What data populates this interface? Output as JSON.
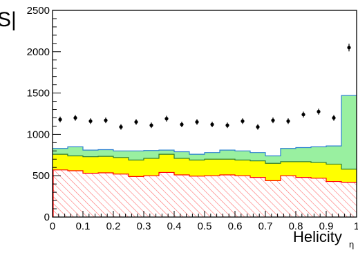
{
  "chart_data": {
    "type": "area",
    "xlabel": "Helicity",
    "xlabel_sub": "η",
    "corner_text": "S|",
    "xlim": [
      0,
      1
    ],
    "ylim": [
      0,
      2500
    ],
    "x_ticks": [
      0,
      0.1,
      0.2,
      0.3,
      0.4,
      0.5,
      0.6,
      0.7,
      0.8,
      0.9,
      1
    ],
    "x_tick_labels": [
      "0",
      "0.1",
      "0.2",
      "0.3",
      "0.4",
      "0.5",
      "0.6",
      "0.7",
      "0.8",
      "0.9",
      "1"
    ],
    "y_ticks": [
      0,
      500,
      1000,
      1500,
      2000,
      2500
    ],
    "y_tick_labels": [
      "0",
      "500",
      "1000",
      "1500",
      "2000",
      "2500"
    ],
    "bin_edges": [
      0,
      0.05,
      0.1,
      0.15,
      0.2,
      0.25,
      0.3,
      0.35,
      0.4,
      0.45,
      0.5,
      0.55,
      0.6,
      0.65,
      0.7,
      0.75,
      0.8,
      0.85,
      0.9,
      0.95,
      1.0
    ],
    "series": [
      {
        "color": "#99f0a0",
        "line_color": "#2a7fd0",
        "values": [
          830,
          850,
          810,
          815,
          800,
          800,
          805,
          810,
          790,
          760,
          780,
          810,
          800,
          780,
          740,
          830,
          840,
          850,
          860,
          1470
        ]
      },
      {
        "color": "#ffff00",
        "line_color": "#2e7d32",
        "values": [
          760,
          740,
          730,
          735,
          720,
          690,
          710,
          760,
          710,
          690,
          700,
          700,
          690,
          680,
          650,
          670,
          670,
          660,
          640,
          580
        ]
      },
      {
        "color": "#e8e8e8",
        "hatch_color": "#ff5555",
        "line_color": "#ff0000",
        "values": [
          570,
          560,
          530,
          535,
          520,
          490,
          500,
          540,
          510,
          495,
          500,
          510,
          500,
          480,
          440,
          500,
          480,
          470,
          430,
          420
        ]
      }
    ],
    "points": {
      "x": [
        0.025,
        0.075,
        0.125,
        0.175,
        0.225,
        0.275,
        0.325,
        0.375,
        0.425,
        0.475,
        0.525,
        0.575,
        0.625,
        0.675,
        0.725,
        0.775,
        0.825,
        0.875,
        0.925,
        0.975
      ],
      "y": [
        1180,
        1200,
        1160,
        1170,
        1090,
        1150,
        1110,
        1190,
        1120,
        1150,
        1120,
        1110,
        1160,
        1090,
        1170,
        1160,
        1240,
        1275,
        1200,
        2050
      ],
      "yerr": [
        35,
        35,
        34,
        34,
        33,
        34,
        33,
        35,
        33,
        34,
        33,
        33,
        34,
        33,
        34,
        34,
        35,
        36,
        35,
        46
      ]
    }
  }
}
